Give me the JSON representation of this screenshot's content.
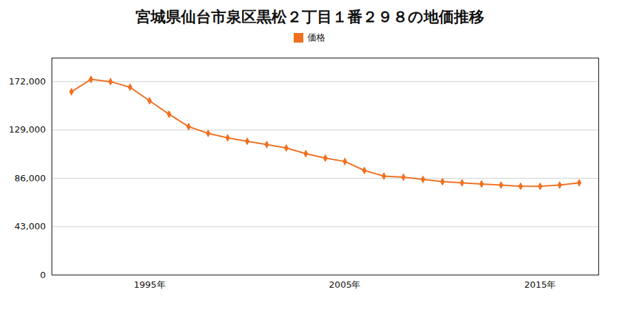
{
  "chart_data": {
    "type": "line",
    "title": "宮城県仙台市泉区黒松２丁目１番２９８の地価推移",
    "x": [
      1991,
      1992,
      1993,
      1994,
      1995,
      1996,
      1997,
      1998,
      1999,
      2000,
      2001,
      2002,
      2003,
      2004,
      2005,
      2006,
      2007,
      2008,
      2009,
      2010,
      2011,
      2012,
      2013,
      2014,
      2015,
      2016,
      2017
    ],
    "series": [
      {
        "name": "価格",
        "color": "#f07020",
        "marker": "diamond",
        "values": [
          163000,
          174000,
          172000,
          167000,
          155000,
          143000,
          132000,
          126000,
          122000,
          119000,
          116000,
          113000,
          108000,
          104000,
          101000,
          93000,
          88000,
          87000,
          85000,
          83000,
          82000,
          81000,
          80000,
          79000,
          79000,
          80000,
          82000
        ]
      }
    ],
    "xlim": [
      1990,
      2018
    ],
    "xticks": [
      {
        "value": 1995,
        "label": "1995年"
      },
      {
        "value": 2005,
        "label": "2005年"
      },
      {
        "value": 2015,
        "label": "2015年"
      }
    ],
    "ylim": [
      0,
      193000
    ],
    "yticks": [
      0,
      {
        "value": 43000,
        "label": "43,000"
      },
      {
        "value": 86000,
        "label": "86,000"
      },
      {
        "value": 129000,
        "label": "129,000"
      },
      {
        "value": 172000,
        "label": "172,000"
      }
    ],
    "grid": true,
    "legend": "top"
  }
}
